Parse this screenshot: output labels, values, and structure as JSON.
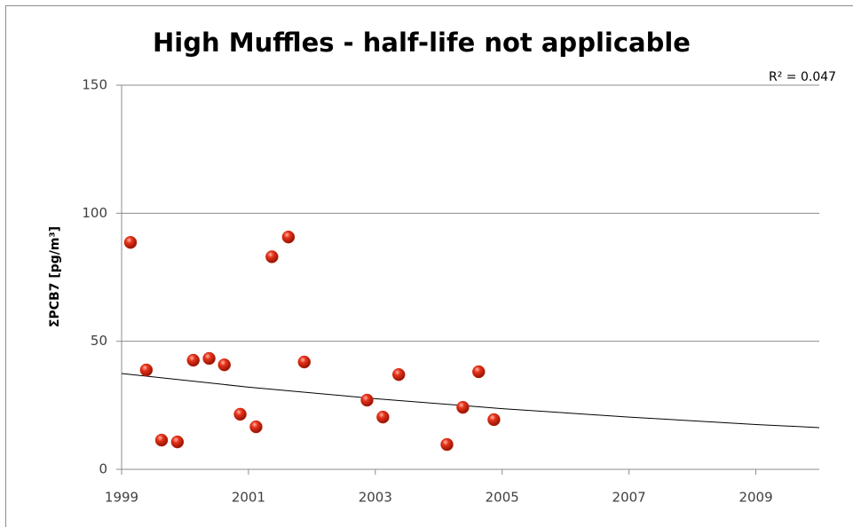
{
  "chart_data": {
    "type": "scatter",
    "title": "High Muffles - half-life not applicable",
    "y_label": "ΣPCB7 [pg/m³]",
    "annotation": "R² = 0.047",
    "x": [
      1999.14,
      1999.39,
      1999.63,
      1999.88,
      2000.13,
      2000.38,
      2000.62,
      2000.87,
      2001.12,
      2001.37,
      2001.63,
      2001.88,
      2002.87,
      2003.12,
      2003.37,
      2004.13,
      2004.38,
      2004.63,
      2004.87
    ],
    "values": [
      88.6,
      38.8,
      11.4,
      10.7,
      42.6,
      43.3,
      40.8,
      21.5,
      16.6,
      83.0,
      90.7,
      41.9,
      27.0,
      20.4,
      37.0,
      9.7,
      24.2,
      38.1,
      19.4
    ],
    "color": "#d42a10",
    "trendline": {
      "x": [
        1999,
        2001,
        2003,
        2005,
        2007,
        2009,
        2010
      ],
      "values": [
        37.4,
        32.1,
        27.6,
        23.7,
        20.4,
        17.5,
        16.3
      ],
      "color": "#000000"
    },
    "xlim": [
      1999,
      2010
    ],
    "xticks": [
      1999,
      2001,
      2003,
      2005,
      2007,
      2009
    ],
    "ylim": [
      0,
      150
    ],
    "yticks": [
      0,
      50,
      100,
      150
    ],
    "grid": true
  }
}
